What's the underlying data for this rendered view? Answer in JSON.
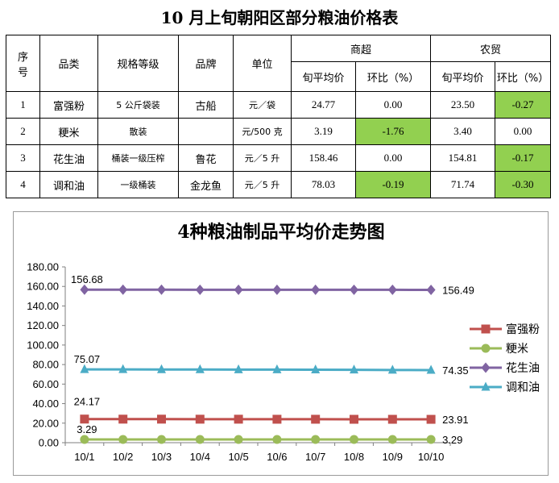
{
  "page_title": "10 月上旬朝阳区部分粮油价格表",
  "table": {
    "headers": {
      "index": "序号",
      "product": "品类",
      "spec": "规格等级",
      "brand": "品牌",
      "unit": "单位",
      "supermarket": "商超",
      "market": "农贸",
      "avg_price": "旬平均价",
      "change": "环比（%）"
    },
    "rows": [
      {
        "index": "1",
        "product": "富强粉",
        "spec": "5 公斤袋装",
        "brand": "古船",
        "unit": "元／袋",
        "sm_price": "24.77",
        "sm_change": "0.00",
        "mk_price": "23.50",
        "mk_change": "-0.27"
      },
      {
        "index": "2",
        "product": "粳米",
        "spec": "散装",
        "brand": "",
        "unit": "元/500 克",
        "sm_price": "3.19",
        "sm_change": "-1.76",
        "mk_price": "3.40",
        "mk_change": "0.00"
      },
      {
        "index": "3",
        "product": "花生油",
        "spec": "桶装一级压榨",
        "brand": "鲁花",
        "unit": "元／5 升",
        "sm_price": "158.46",
        "sm_change": "0.00",
        "mk_price": "154.81",
        "mk_change": "-0.17"
      },
      {
        "index": "4",
        "product": "调和油",
        "spec": "一级桶装",
        "brand": "金龙鱼",
        "unit": "元／5 升",
        "sm_price": "78.03",
        "sm_change": "-0.19",
        "mk_price": "71.74",
        "mk_change": "-0.30"
      }
    ],
    "highlight_color": "#92d050"
  },
  "chart_data": {
    "type": "line",
    "title": "4种粮油制品平均价走势图",
    "xlabel": "",
    "ylabel": "",
    "categories": [
      "10/1",
      "10/2",
      "10/3",
      "10/4",
      "10/5",
      "10/6",
      "10/7",
      "10/8",
      "10/9",
      "10/10"
    ],
    "ylim": [
      0,
      180
    ],
    "yticks": [
      "0.00",
      "20.00",
      "40.00",
      "60.00",
      "80.00",
      "100.00",
      "120.00",
      "140.00",
      "160.00",
      "180.00"
    ],
    "legend_position": "right",
    "grid": false,
    "series": [
      {
        "name": "富强粉",
        "color": "#c0504d",
        "marker": "square",
        "values": [
          24.17,
          24.1,
          24.1,
          24.05,
          24.05,
          24.0,
          24.0,
          23.95,
          23.95,
          23.91
        ],
        "start_label": "24.17",
        "end_label": "23.91"
      },
      {
        "name": "粳米",
        "color": "#9bbb59",
        "marker": "circle",
        "values": [
          3.29,
          3.29,
          3.29,
          3.29,
          3.29,
          3.29,
          3.29,
          3.29,
          3.29,
          3.29
        ],
        "start_label": "3.29",
        "end_label": "3.29"
      },
      {
        "name": "花生油",
        "color": "#8064a2",
        "marker": "diamond",
        "values": [
          156.68,
          156.66,
          156.64,
          156.62,
          156.6,
          156.58,
          156.56,
          156.54,
          156.52,
          156.49
        ],
        "start_label": "156.68",
        "end_label": "156.49"
      },
      {
        "name": "调和油",
        "color": "#4bacc6",
        "marker": "triangle",
        "values": [
          75.07,
          75.0,
          74.95,
          74.9,
          74.85,
          74.8,
          74.7,
          74.6,
          74.45,
          74.35
        ],
        "start_label": "75.07",
        "end_label": "74.35"
      }
    ]
  }
}
